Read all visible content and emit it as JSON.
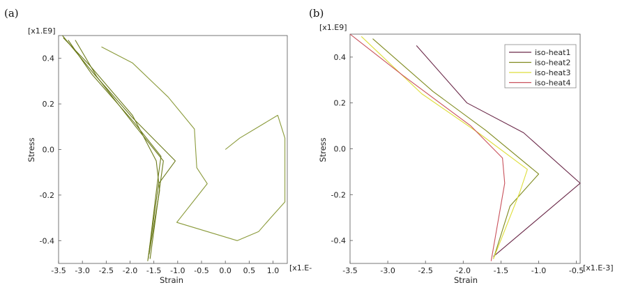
{
  "chart_data": [
    {
      "panel_label": "(a)",
      "type": "line",
      "xlabel": "Strain",
      "ylabel": "Stress",
      "x_unit": "[x1.E-",
      "y_unit": "[x1.E9]",
      "xlim": [
        -3.5,
        1.3
      ],
      "ylim": [
        -0.5,
        0.5
      ],
      "xticks": [
        -3.5,
        -3.0,
        -2.5,
        -2.0,
        -1.5,
        -1.0,
        -0.5,
        0.0,
        0.5,
        1.0
      ],
      "xtick_labels": [
        "-3.5",
        "-3.0",
        "-2.5",
        "-2.0",
        "-1.5",
        "-1.0",
        "-0.5",
        "0.0",
        "0.5",
        "1.0"
      ],
      "yticks": [
        0.4,
        0.2,
        0.0,
        -0.2,
        -0.4
      ],
      "ytick_labels": [
        "0.4",
        "0.2",
        "0.0",
        "-0.2",
        "-0.4"
      ],
      "grid": false,
      "colors": [
        "#6b7a1a",
        "#6b7a1a",
        "#6b7a1a",
        "#6b7a1a",
        "#8a9a3a"
      ],
      "series": [
        {
          "x": [
            -3.4,
            -2.85,
            -1.95,
            -1.45,
            -1.38,
            -1.6
          ],
          "y": [
            0.49,
            0.37,
            0.15,
            -0.05,
            -0.18,
            -0.46
          ]
        },
        {
          "x": [
            -3.3,
            -2.8,
            -1.92,
            -1.35,
            -1.43,
            -1.62
          ],
          "y": [
            0.48,
            0.33,
            0.12,
            -0.03,
            -0.15,
            -0.48
          ]
        },
        {
          "x": [
            -3.15,
            -2.7,
            -1.88,
            -1.3,
            -1.38,
            -1.58
          ],
          "y": [
            0.48,
            0.32,
            0.1,
            -0.05,
            -0.17,
            -0.48
          ]
        },
        {
          "x": [
            -3.42,
            -2.75,
            -1.95,
            -1.05,
            -1.4,
            -1.63
          ],
          "y": [
            0.5,
            0.33,
            0.14,
            -0.05,
            -0.15,
            -0.49
          ]
        },
        {
          "x": [
            -2.6,
            -1.95,
            -1.2,
            -0.65,
            -0.6,
            -0.38,
            -1.02,
            0.25,
            0.7,
            0.95,
            1.25,
            1.25,
            1.1,
            0.3,
            0.0
          ],
          "y": [
            0.45,
            0.38,
            0.23,
            0.09,
            -0.08,
            -0.15,
            -0.32,
            -0.4,
            -0.36,
            -0.3,
            -0.23,
            0.05,
            0.15,
            0.05,
            0.0
          ]
        }
      ]
    },
    {
      "panel_label": "(b)",
      "type": "line",
      "xlabel": "Strain",
      "ylabel": "Stress",
      "x_unit": "[x1.E-3]",
      "y_unit": "[x1.E9]",
      "xlim": [
        -3.5,
        -0.45
      ],
      "ylim": [
        -0.5,
        0.5
      ],
      "xticks": [
        -3.5,
        -3.0,
        -2.5,
        -2.0,
        -1.5,
        -1.0,
        -0.5
      ],
      "xtick_labels": [
        "-3.5",
        "-3.0",
        "-2.5",
        "-2.0",
        "-1.5",
        "-1.0",
        "-0.5"
      ],
      "yticks": [
        0.4,
        0.2,
        0.0,
        -0.2,
        -0.4
      ],
      "ytick_labels": [
        "0.4",
        "0.2",
        "0.0",
        "-0.2",
        "-0.4"
      ],
      "grid": false,
      "legend_position": "top-right",
      "series": [
        {
          "name": "iso-heat1",
          "color": "#6a2848",
          "x": [
            -2.62,
            -1.95,
            -1.2,
            -0.45,
            -1.6
          ],
          "y": [
            0.45,
            0.2,
            0.07,
            -0.15,
            -0.47
          ]
        },
        {
          "name": "iso-heat2",
          "color": "#7f8a1e",
          "x": [
            -3.2,
            -2.4,
            -1.7,
            -1.0,
            -1.38,
            -1.6
          ],
          "y": [
            0.48,
            0.25,
            0.08,
            -0.11,
            -0.25,
            -0.48
          ]
        },
        {
          "name": "iso-heat3",
          "color": "#dede3a",
          "x": [
            -3.35,
            -2.55,
            -1.8,
            -1.15,
            -1.25,
            -1.6
          ],
          "y": [
            0.49,
            0.24,
            0.07,
            -0.09,
            -0.19,
            -0.48
          ]
        },
        {
          "name": "iso-heat4",
          "color": "#c8505a",
          "x": [
            -3.5,
            -2.8,
            -1.9,
            -1.48,
            -1.45,
            -1.63
          ],
          "y": [
            0.5,
            0.32,
            0.1,
            -0.04,
            -0.15,
            -0.49
          ]
        }
      ]
    }
  ]
}
